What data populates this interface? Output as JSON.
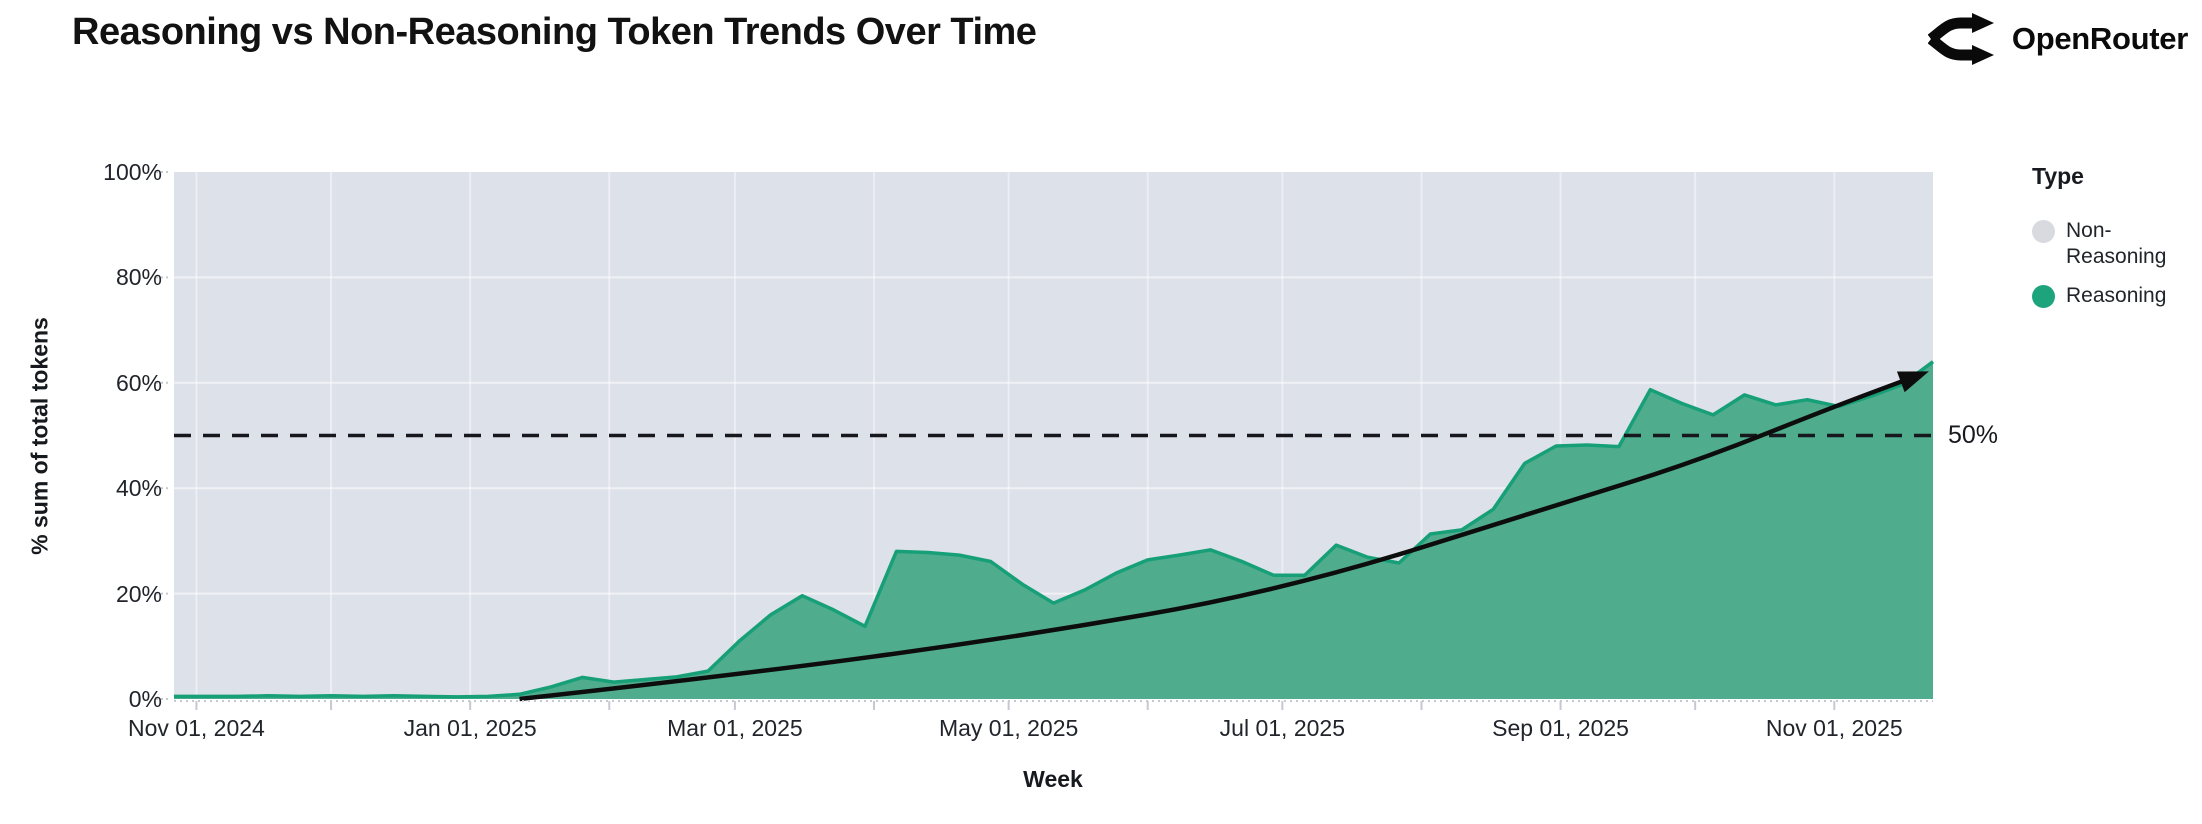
{
  "header": {
    "title": "Reasoning vs Non-Reasoning Token Trends Over Time",
    "brand": "OpenRouter"
  },
  "chart": {
    "y_axis": {
      "label": "% sum of total tokens",
      "ticks": [
        {
          "label": "0%",
          "value": 0
        },
        {
          "label": "20%",
          "value": 20
        },
        {
          "label": "40%",
          "value": 40
        },
        {
          "label": "60%",
          "value": 60
        },
        {
          "label": "80%",
          "value": 80
        },
        {
          "label": "100%",
          "value": 100
        }
      ]
    },
    "x_axis": {
      "label": "Week",
      "ticks": [
        {
          "label": "Nov 01, 2024",
          "date": "2024-11-01"
        },
        {
          "label": "Jan 01, 2025",
          "date": "2025-01-01"
        },
        {
          "label": "Mar 01, 2025",
          "date": "2025-03-01"
        },
        {
          "label": "May 01, 2025",
          "date": "2025-05-01"
        },
        {
          "label": "Jul 01, 2025",
          "date": "2025-07-01"
        },
        {
          "label": "Sep 01, 2025",
          "date": "2025-09-01"
        },
        {
          "label": "Nov 01, 2025",
          "date": "2025-11-01"
        }
      ]
    },
    "legend": {
      "title": "Type",
      "items": [
        {
          "label": "Non-Reasoning",
          "color": "#d8dae0"
        },
        {
          "label": "Reasoning",
          "color": "#1da47c"
        }
      ]
    },
    "annotation_50pct_label": "50%"
  },
  "chart_data": {
    "type": "area",
    "stacked_percent": true,
    "title": "Reasoning vs Non-Reasoning Token Trends Over Time",
    "xlabel": "Week",
    "ylabel": "% sum of total tokens",
    "ylim": [
      0,
      100
    ],
    "x_range": [
      "2024-10-27",
      "2025-11-23"
    ],
    "grid": "monthly vertical + 20% horizontal, white on gray panel",
    "legend_position": "right",
    "x": [
      "2024-10-27",
      "2024-11-03",
      "2024-11-10",
      "2024-11-17",
      "2024-11-24",
      "2024-12-01",
      "2024-12-08",
      "2024-12-15",
      "2024-12-22",
      "2024-12-29",
      "2025-01-05",
      "2025-01-12",
      "2025-01-19",
      "2025-01-26",
      "2025-02-02",
      "2025-02-09",
      "2025-02-16",
      "2025-02-23",
      "2025-03-02",
      "2025-03-09",
      "2025-03-16",
      "2025-03-23",
      "2025-03-30",
      "2025-04-06",
      "2025-04-13",
      "2025-04-20",
      "2025-04-27",
      "2025-05-04",
      "2025-05-11",
      "2025-05-18",
      "2025-05-25",
      "2025-06-01",
      "2025-06-08",
      "2025-06-15",
      "2025-06-22",
      "2025-06-29",
      "2025-07-06",
      "2025-07-13",
      "2025-07-20",
      "2025-07-27",
      "2025-08-03",
      "2025-08-10",
      "2025-08-17",
      "2025-08-24",
      "2025-08-31",
      "2025-09-07",
      "2025-09-14",
      "2025-09-21",
      "2025-09-28",
      "2025-10-05",
      "2025-10-12",
      "2025-10-19",
      "2025-10-26",
      "2025-11-02",
      "2025-11-09",
      "2025-11-16",
      "2025-11-23"
    ],
    "series": [
      {
        "name": "Reasoning",
        "color": "#17a077",
        "fill": "#4fac8d",
        "values": [
          0.5,
          0.5,
          0.5,
          0.6,
          0.5,
          0.6,
          0.5,
          0.6,
          0.5,
          0.4,
          0.5,
          0.9,
          2.3,
          4.1,
          3.2,
          3.7,
          4.2,
          5.3,
          11.0,
          16.0,
          19.6,
          16.9,
          13.8,
          28.0,
          27.8,
          27.3,
          26.1,
          21.8,
          18.2,
          20.7,
          23.9,
          26.4,
          27.3,
          28.3,
          26.1,
          23.5,
          23.5,
          29.2,
          26.9,
          25.8,
          31.3,
          32.1,
          36.0,
          44.7,
          48.0,
          48.2,
          47.9,
          58.7,
          56.1,
          53.9,
          57.7,
          55.8,
          56.8,
          55.5,
          57.4,
          59.6,
          64.0
        ]
      },
      {
        "name": "Non-Reasoning",
        "color": "#d8dae0",
        "note": "background band; complement of Reasoning to 100%"
      }
    ],
    "annotations": {
      "reference_line": {
        "y": 50,
        "style": "black dashed",
        "label": "50%"
      },
      "trend_arrow": {
        "style": "black solid curve with arrowhead",
        "points": [
          {
            "date": "2025-01-12",
            "value": 0
          },
          {
            "date": "2025-03-01",
            "value": 4.5
          },
          {
            "date": "2025-05-01",
            "value": 11.5
          },
          {
            "date": "2025-07-01",
            "value": 20.5
          },
          {
            "date": "2025-09-01",
            "value": 37
          },
          {
            "date": "2025-10-01",
            "value": 45
          },
          {
            "date": "2025-11-01",
            "value": 55.5
          },
          {
            "date": "2025-11-20",
            "value": 61.5
          }
        ]
      }
    }
  },
  "colors": {
    "page_bg": "#ffffff",
    "plot_bg": "#dde1e9",
    "area_fill": "#4fac8d",
    "area_stroke": "#17a077",
    "nonreasoning_gray": "#d8dae0",
    "legend_green": "#1da47c",
    "grid_white": "rgba(255,255,255,0.55)",
    "axis_gray": "#c6c9d2",
    "ink": "#16181d"
  }
}
